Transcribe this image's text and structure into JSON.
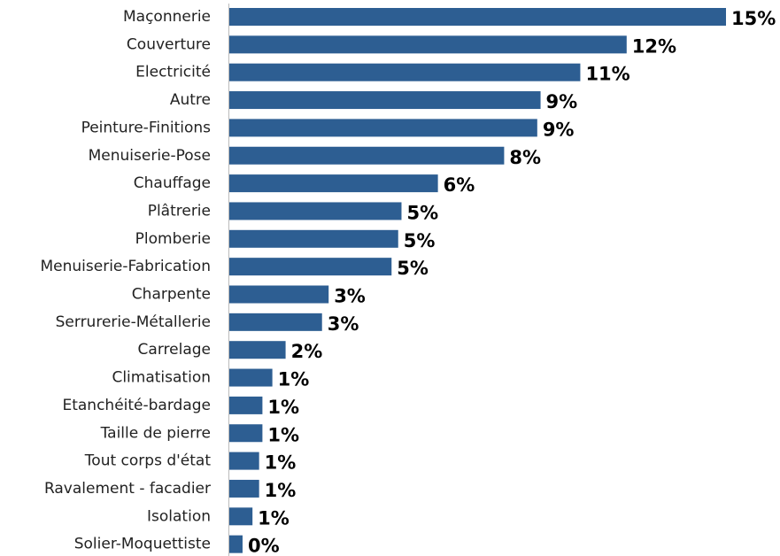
{
  "chart_data": {
    "type": "hbar",
    "color": "#2d5e92",
    "categories": [
      "Maçonnerie",
      "Couverture",
      "Electricité",
      "Autre",
      "Peinture-Finitions",
      "Menuiserie-Pose",
      "Chauffage",
      "Plâtrerie",
      "Plomberie",
      "Menuiserie-Fabrication",
      "Charpente",
      "Serrurerie-Métallerie",
      "Carrelage",
      "Climatisation",
      "Etanchéité-bardage",
      "Taille de pierre",
      "Tout corps d'état",
      "Ravalement - facadier",
      "Isolation",
      "Solier-Moquettiste"
    ],
    "values": [
      15.0,
      12.0,
      10.6,
      9.4,
      9.3,
      8.3,
      6.3,
      5.2,
      5.1,
      4.9,
      3.0,
      2.8,
      1.7,
      1.3,
      1.0,
      1.0,
      0.9,
      0.9,
      0.7,
      0.4
    ],
    "value_labels": [
      "15%",
      "12%",
      "11%",
      "9%",
      "9%",
      "8%",
      "6%",
      "5%",
      "5%",
      "5%",
      "3%",
      "3%",
      "2%",
      "1%",
      "1%",
      "1%",
      "1%",
      "1%",
      "1%",
      "0%"
    ],
    "xlim": [
      0,
      15
    ]
  }
}
